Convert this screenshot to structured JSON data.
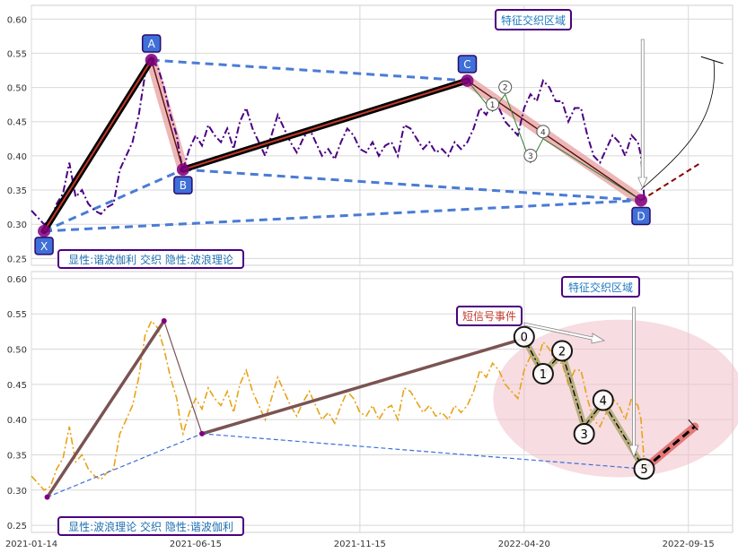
{
  "chart_data": [
    {
      "type": "line",
      "panel": "top",
      "ylim": [
        0.24,
        0.62
      ],
      "y_ticks": [
        "0.25",
        "0.30",
        "0.35",
        "0.40",
        "0.45",
        "0.50",
        "0.55",
        "0.60"
      ],
      "colors": {
        "price": "#4b0082",
        "xabcd": "#000000",
        "xabcd_inner": "#c0392b",
        "dashed_blue": "#4a7bd6",
        "badge_fill": "#3f6fd8",
        "badge_edge": "#2a0a6a",
        "pivot": "#800080",
        "abcd_band": "#e8a0a0",
        "forecast": "#8b0000"
      },
      "price_series": [
        [
          0,
          0.32
        ],
        [
          2,
          0.31
        ],
        [
          4,
          0.3
        ],
        [
          6,
          0.305
        ],
        [
          8,
          0.33
        ],
        [
          10,
          0.345
        ],
        [
          12,
          0.39
        ],
        [
          14,
          0.34
        ],
        [
          16,
          0.35
        ],
        [
          18,
          0.33
        ],
        [
          20,
          0.32
        ],
        [
          22,
          0.315
        ],
        [
          24,
          0.325
        ],
        [
          26,
          0.33
        ],
        [
          28,
          0.38
        ],
        [
          30,
          0.4
        ],
        [
          32,
          0.42
        ],
        [
          34,
          0.46
        ],
        [
          36,
          0.52
        ],
        [
          38,
          0.54
        ],
        [
          40,
          0.53
        ],
        [
          42,
          0.5
        ],
        [
          44,
          0.46
        ],
        [
          46,
          0.43
        ],
        [
          47,
          0.4
        ],
        [
          48,
          0.38
        ],
        [
          50,
          0.41
        ],
        [
          52,
          0.43
        ],
        [
          54,
          0.415
        ],
        [
          56,
          0.445
        ],
        [
          58,
          0.43
        ],
        [
          60,
          0.42
        ],
        [
          62,
          0.44
        ],
        [
          64,
          0.41
        ],
        [
          66,
          0.45
        ],
        [
          68,
          0.47
        ],
        [
          70,
          0.44
        ],
        [
          72,
          0.42
        ],
        [
          74,
          0.4
        ],
        [
          76,
          0.43
        ],
        [
          78,
          0.46
        ],
        [
          80,
          0.44
        ],
        [
          82,
          0.42
        ],
        [
          84,
          0.405
        ],
        [
          86,
          0.425
        ],
        [
          88,
          0.44
        ],
        [
          90,
          0.42
        ],
        [
          92,
          0.4
        ],
        [
          94,
          0.41
        ],
        [
          96,
          0.395
        ],
        [
          98,
          0.42
        ],
        [
          100,
          0.44
        ],
        [
          102,
          0.43
        ],
        [
          104,
          0.41
        ],
        [
          106,
          0.405
        ],
        [
          108,
          0.42
        ],
        [
          110,
          0.4
        ],
        [
          112,
          0.415
        ],
        [
          114,
          0.42
        ],
        [
          116,
          0.4
        ],
        [
          118,
          0.445
        ],
        [
          120,
          0.44
        ],
        [
          122,
          0.425
        ],
        [
          124,
          0.41
        ],
        [
          126,
          0.42
        ],
        [
          128,
          0.405
        ],
        [
          130,
          0.41
        ],
        [
          132,
          0.4
        ],
        [
          134,
          0.42
        ],
        [
          136,
          0.41
        ],
        [
          138,
          0.42
        ],
        [
          140,
          0.44
        ],
        [
          142,
          0.47
        ],
        [
          144,
          0.46
        ],
        [
          146,
          0.48
        ],
        [
          148,
          0.47
        ],
        [
          150,
          0.45
        ],
        [
          152,
          0.44
        ],
        [
          154,
          0.43
        ],
        [
          156,
          0.47
        ],
        [
          158,
          0.49
        ],
        [
          160,
          0.48
        ],
        [
          162,
          0.51
        ],
        [
          164,
          0.5
        ],
        [
          166,
          0.48
        ],
        [
          168,
          0.48
        ],
        [
          170,
          0.45
        ],
        [
          172,
          0.47
        ],
        [
          174,
          0.47
        ],
        [
          176,
          0.43
        ],
        [
          178,
          0.4
        ],
        [
          180,
          0.39
        ],
        [
          182,
          0.41
        ],
        [
          184,
          0.43
        ],
        [
          186,
          0.42
        ],
        [
          188,
          0.4
        ],
        [
          190,
          0.43
        ],
        [
          192,
          0.42
        ],
        [
          193,
          0.4
        ],
        [
          194,
          0.34
        ]
      ],
      "pattern_points": [
        {
          "label": "X",
          "x": 4,
          "y": 0.29
        },
        {
          "label": "A",
          "x": 38,
          "y": 0.54
        },
        {
          "label": "B",
          "x": 48,
          "y": 0.38
        },
        {
          "label": "C",
          "x": 138,
          "y": 0.51
        },
        {
          "label": "D",
          "x": 193,
          "y": 0.335
        }
      ],
      "wave_points": [
        {
          "label": "1",
          "x": 146,
          "y": 0.465
        },
        {
          "label": "2",
          "x": 150,
          "y": 0.49
        },
        {
          "label": "3",
          "x": 158,
          "y": 0.39
        },
        {
          "label": "4",
          "x": 162,
          "y": 0.425
        }
      ],
      "annotation_box": "特征交织区域",
      "legend_text": "显性:谐波伽利 交织 隐性:波浪理论"
    },
    {
      "type": "line",
      "panel": "bottom",
      "ylim": [
        0.24,
        0.61
      ],
      "y_ticks": [
        "0.25",
        "0.30",
        "0.35",
        "0.40",
        "0.45",
        "0.50",
        "0.55",
        "0.60"
      ],
      "x_tick_labels": [
        "2021-01-14",
        "2021-06-15",
        "2021-11-15",
        "2022-04-20",
        "2022-09-15"
      ],
      "x_tick_positions": [
        0,
        52,
        104,
        156,
        208
      ],
      "colors": {
        "price": "#e8a317",
        "leg": "#7b5353",
        "dashed_blue": "#3a6fd8",
        "ellipse": "#f1c0c8",
        "wave_band": "#a4a060",
        "wave_line": "#000000",
        "forecast": "#e06060",
        "label_short": "#c0392b",
        "label_box_edge": "#4b0082",
        "badge_text": "#1f6fb0"
      },
      "price_series": [
        [
          0,
          0.32
        ],
        [
          2,
          0.31
        ],
        [
          4,
          0.3
        ],
        [
          6,
          0.305
        ],
        [
          8,
          0.33
        ],
        [
          10,
          0.345
        ],
        [
          12,
          0.39
        ],
        [
          14,
          0.34
        ],
        [
          16,
          0.35
        ],
        [
          18,
          0.33
        ],
        [
          20,
          0.32
        ],
        [
          22,
          0.315
        ],
        [
          24,
          0.325
        ],
        [
          26,
          0.33
        ],
        [
          28,
          0.38
        ],
        [
          30,
          0.4
        ],
        [
          32,
          0.42
        ],
        [
          34,
          0.46
        ],
        [
          36,
          0.52
        ],
        [
          38,
          0.54
        ],
        [
          40,
          0.53
        ],
        [
          42,
          0.5
        ],
        [
          44,
          0.46
        ],
        [
          46,
          0.43
        ],
        [
          47,
          0.4
        ],
        [
          48,
          0.38
        ],
        [
          50,
          0.41
        ],
        [
          52,
          0.43
        ],
        [
          54,
          0.415
        ],
        [
          56,
          0.445
        ],
        [
          58,
          0.43
        ],
        [
          60,
          0.42
        ],
        [
          62,
          0.44
        ],
        [
          64,
          0.41
        ],
        [
          66,
          0.45
        ],
        [
          68,
          0.47
        ],
        [
          70,
          0.44
        ],
        [
          72,
          0.42
        ],
        [
          74,
          0.4
        ],
        [
          76,
          0.43
        ],
        [
          78,
          0.46
        ],
        [
          80,
          0.44
        ],
        [
          82,
          0.42
        ],
        [
          84,
          0.405
        ],
        [
          86,
          0.425
        ],
        [
          88,
          0.44
        ],
        [
          90,
          0.42
        ],
        [
          92,
          0.4
        ],
        [
          94,
          0.41
        ],
        [
          96,
          0.395
        ],
        [
          98,
          0.42
        ],
        [
          100,
          0.44
        ],
        [
          102,
          0.43
        ],
        [
          104,
          0.41
        ],
        [
          106,
          0.405
        ],
        [
          108,
          0.42
        ],
        [
          110,
          0.4
        ],
        [
          112,
          0.415
        ],
        [
          114,
          0.42
        ],
        [
          116,
          0.4
        ],
        [
          118,
          0.445
        ],
        [
          120,
          0.44
        ],
        [
          122,
          0.425
        ],
        [
          124,
          0.41
        ],
        [
          126,
          0.42
        ],
        [
          128,
          0.405
        ],
        [
          130,
          0.41
        ],
        [
          132,
          0.4
        ],
        [
          134,
          0.42
        ],
        [
          136,
          0.41
        ],
        [
          138,
          0.42
        ],
        [
          140,
          0.44
        ],
        [
          142,
          0.47
        ],
        [
          144,
          0.46
        ],
        [
          146,
          0.48
        ],
        [
          148,
          0.47
        ],
        [
          150,
          0.45
        ],
        [
          152,
          0.44
        ],
        [
          154,
          0.43
        ],
        [
          156,
          0.47
        ],
        [
          158,
          0.49
        ],
        [
          160,
          0.48
        ],
        [
          162,
          0.51
        ],
        [
          164,
          0.5
        ],
        [
          166,
          0.48
        ],
        [
          168,
          0.48
        ],
        [
          170,
          0.45
        ],
        [
          172,
          0.47
        ],
        [
          174,
          0.47
        ],
        [
          176,
          0.43
        ],
        [
          178,
          0.4
        ],
        [
          180,
          0.39
        ],
        [
          182,
          0.41
        ],
        [
          184,
          0.43
        ],
        [
          186,
          0.42
        ],
        [
          188,
          0.4
        ],
        [
          190,
          0.43
        ],
        [
          192,
          0.42
        ],
        [
          193,
          0.4
        ],
        [
          194,
          0.34
        ]
      ],
      "wave_points": [
        {
          "label": "0",
          "x": 156,
          "y": 0.515
        },
        {
          "label": "1",
          "x": 162,
          "y": 0.465
        },
        {
          "label": "2",
          "x": 168,
          "y": 0.495
        },
        {
          "label": "3",
          "x": 175,
          "y": 0.39
        },
        {
          "label": "4",
          "x": 181,
          "y": 0.425
        },
        {
          "label": "5",
          "x": 194,
          "y": 0.33
        }
      ],
      "pivot_points": [
        [
          5,
          0.29
        ],
        [
          42,
          0.54
        ],
        [
          54,
          0.38
        ],
        [
          156,
          0.515
        ]
      ],
      "annotation_box": "特征交织区域",
      "short_signal_label": "短信号事件",
      "legend_text": "显性:波浪理论 交织 隐性:谐波伽利"
    }
  ]
}
